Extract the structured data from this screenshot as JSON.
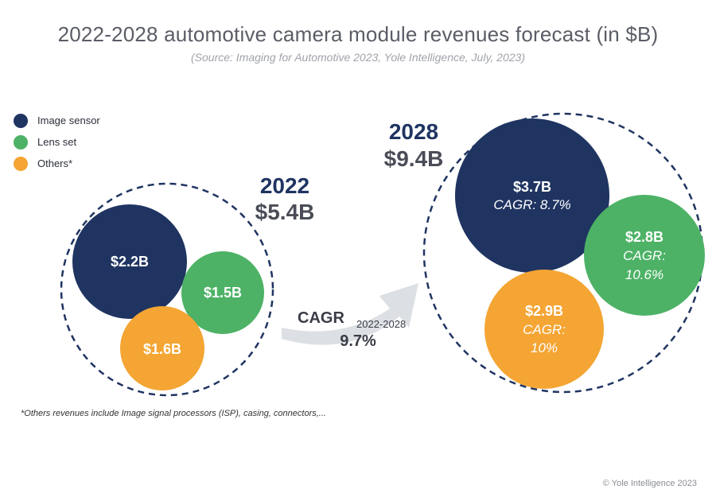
{
  "title": "2022-2028 automotive camera module revenues forecast (in $B)",
  "subtitle": "(Source: Imaging for Automotive 2023, Yole Intelligence, July, 2023)",
  "legend": [
    {
      "label": "Image sensor",
      "color": "#1f3461"
    },
    {
      "label": "Lens set",
      "color": "#4db266"
    },
    {
      "label": "Others*",
      "color": "#f4a533"
    }
  ],
  "footnote": "*Others revenues include Image signal processors (ISP), casing, connectors,...",
  "copyright": "© Yole Intelligence 2023",
  "chart_data": {
    "type": "bubble",
    "title": "2022-2028 automotive camera module revenues forecast (in $B)",
    "years": [
      {
        "year": "2022",
        "total": 5.4,
        "total_label": "$5.4B",
        "segments": [
          {
            "name": "Image sensor",
            "value": 2.2,
            "label": "$2.2B"
          },
          {
            "name": "Lens set",
            "value": 1.5,
            "label": "$1.5B"
          },
          {
            "name": "Others*",
            "value": 1.6,
            "label": "$1.6B"
          }
        ]
      },
      {
        "year": "2028",
        "total": 9.4,
        "total_label": "$9.4B",
        "segments": [
          {
            "name": "Image sensor",
            "value": 3.7,
            "label": "$3.7B",
            "cagr_line1": "CAGR: 8.7%",
            "cagr_line2": ""
          },
          {
            "name": "Lens set",
            "value": 2.8,
            "label": "$2.8B",
            "cagr_line1": "CAGR:",
            "cagr_line2": "10.6%"
          },
          {
            "name": "Others*",
            "value": 2.9,
            "label": "$2.9B",
            "cagr_line1": "CAGR:",
            "cagr_line2": "10%"
          }
        ]
      }
    ],
    "overall_cagr": {
      "label": "CAGR",
      "period": "2022-2028",
      "value": "9.7%"
    }
  }
}
